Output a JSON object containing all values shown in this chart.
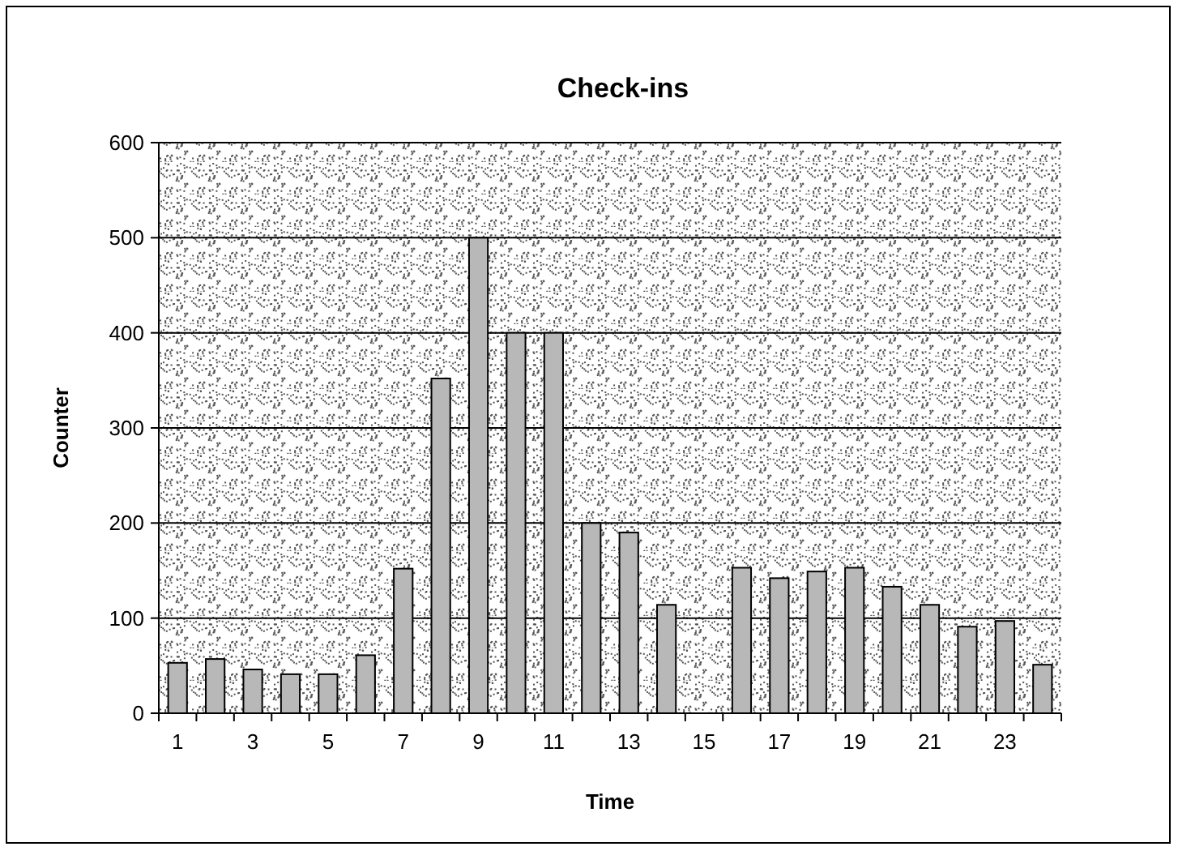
{
  "chart_data": {
    "type": "bar",
    "title": "Check-ins",
    "xlabel": "Time",
    "ylabel": "Counter",
    "x": [
      1,
      2,
      3,
      4,
      5,
      6,
      7,
      8,
      9,
      10,
      11,
      12,
      13,
      14,
      15,
      16,
      17,
      18,
      19,
      20,
      21,
      22,
      23,
      24
    ],
    "values": [
      53,
      57,
      46,
      41,
      41,
      61,
      152,
      352,
      500,
      400,
      400,
      200,
      190,
      114,
      0,
      153,
      142,
      149,
      153,
      133,
      114,
      91,
      97,
      51
    ],
    "color": "#b8b8b8",
    "xlim": [
      0.5,
      24.5
    ],
    "xticks": [
      1,
      3,
      5,
      7,
      9,
      11,
      13,
      15,
      17,
      19,
      21,
      23
    ],
    "ylim": [
      0,
      600
    ],
    "yticks": [
      0,
      100,
      200,
      300,
      400,
      500,
      600
    ],
    "grid": "y"
  }
}
